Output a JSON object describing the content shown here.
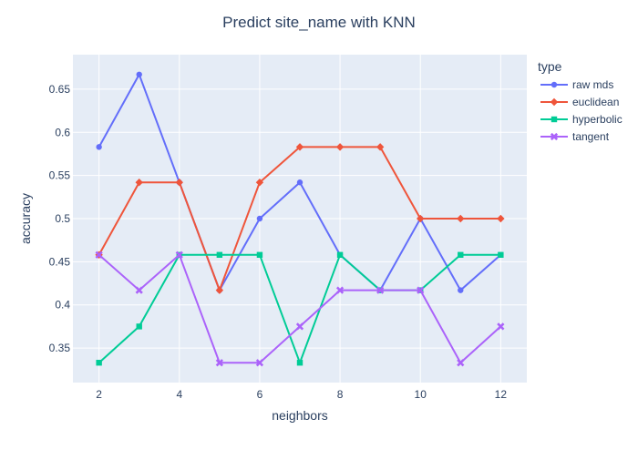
{
  "chart_data": {
    "type": "line",
    "title": "Predict site_name with KNN",
    "xlabel": "neighbors",
    "ylabel": "accuracy",
    "xlim": [
      1.35,
      12.65
    ],
    "ylim": [
      0.31,
      0.69
    ],
    "x_ticks": [
      2,
      4,
      6,
      8,
      10,
      12
    ],
    "y_ticks": [
      0.35,
      0.4,
      0.45,
      0.5,
      0.55,
      0.6,
      0.65
    ],
    "y_tick_labels": [
      "0.35",
      "0.4",
      "0.45",
      "0.5",
      "0.55",
      "0.6",
      "0.65"
    ],
    "grid": true,
    "legend_title": "type",
    "legend_position": "right",
    "x": [
      2,
      3,
      4,
      5,
      6,
      7,
      8,
      9,
      10,
      11,
      12
    ],
    "series": [
      {
        "name": "raw mds",
        "color": "#636efa",
        "marker": "circle",
        "values": [
          0.583,
          0.667,
          0.542,
          0.417,
          0.5,
          0.542,
          0.458,
          0.417,
          0.5,
          0.417,
          0.458
        ]
      },
      {
        "name": "euclidean",
        "color": "#ef553b",
        "marker": "diamond",
        "values": [
          0.458,
          0.542,
          0.542,
          0.417,
          0.542,
          0.583,
          0.583,
          0.583,
          0.5,
          0.5,
          0.5
        ]
      },
      {
        "name": "hyperbolic",
        "color": "#00cc96",
        "marker": "square",
        "values": [
          0.333,
          0.375,
          0.458,
          0.458,
          0.458,
          0.333,
          0.458,
          0.417,
          0.417,
          0.458,
          0.458
        ]
      },
      {
        "name": "tangent",
        "color": "#ab63fa",
        "marker": "x",
        "values": [
          0.458,
          0.417,
          0.458,
          0.333,
          0.333,
          0.375,
          0.417,
          0.417,
          0.417,
          0.333,
          0.375
        ]
      }
    ]
  }
}
